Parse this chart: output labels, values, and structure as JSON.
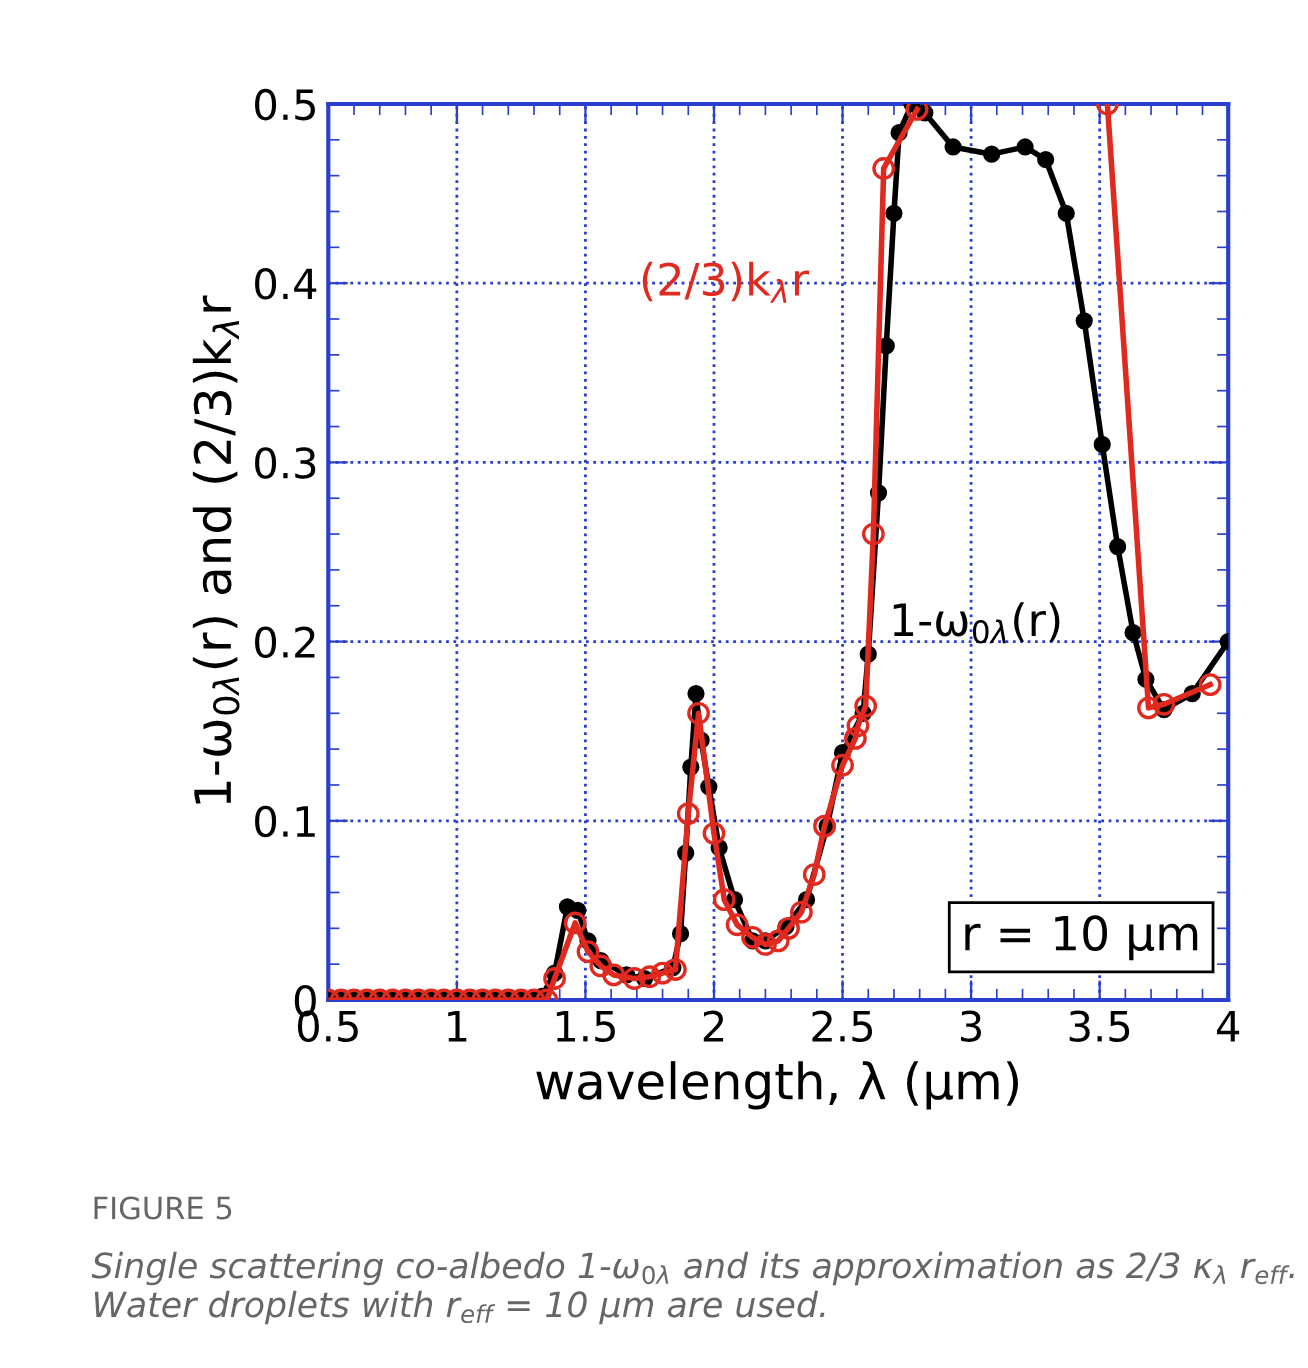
{
  "chart_data": {
    "type": "line",
    "xlabel": "wavelength, λ (µm)",
    "ylabel": "1-ω$_{0λ}$(r) and (2/3)k$_{λ}$r",
    "xlim": [
      0.5,
      4
    ],
    "ylim": [
      0,
      0.5
    ],
    "xticks": [
      0.5,
      1,
      1.5,
      2,
      2.5,
      3,
      3.5,
      4
    ],
    "yticks": [
      0,
      0.1,
      0.2,
      0.3,
      0.4,
      0.5
    ],
    "grid": true,
    "legend": false,
    "line_style": "solid",
    "series": [
      {
        "name": "(2/3)k$_{λ}$r",
        "color": "#e0291f",
        "marker": "circle",
        "x": [
          0.5,
          0.55,
          0.6,
          0.65,
          0.7,
          0.75,
          0.8,
          0.85,
          0.9,
          0.95,
          1.0,
          1.05,
          1.1,
          1.15,
          1.2,
          1.25,
          1.3,
          1.35,
          1.38,
          1.46,
          1.51,
          1.56,
          1.61,
          1.69,
          1.75,
          1.8,
          1.85,
          1.9,
          1.94,
          2.0,
          2.04,
          2.09,
          2.15,
          2.2,
          2.25,
          2.29,
          2.34,
          2.39,
          2.43,
          2.5,
          2.55,
          2.56,
          2.59,
          2.62,
          2.66,
          2.79,
          3.1,
          3.53,
          3.69,
          3.75,
          3.93
        ],
        "values": [
          0,
          0,
          0,
          0,
          0,
          0,
          0,
          0,
          0,
          0,
          0,
          0,
          0,
          0,
          0,
          0,
          0,
          0,
          0.012,
          0.043,
          0.027,
          0.019,
          0.014,
          0.012,
          0.013,
          0.015,
          0.017,
          0.104,
          0.16,
          0.093,
          0.056,
          0.042,
          0.035,
          0.031,
          0.033,
          0.04,
          0.049,
          0.07,
          0.097,
          0.131,
          0.146,
          0.153,
          0.164,
          0.26,
          0.464,
          0.497,
          null,
          0.5,
          0.163,
          0.165,
          0.176
        ]
      },
      {
        "name": "1-ω$_{0λ}$(r)",
        "color": "#000000",
        "marker": "circle",
        "x": [
          0.5,
          0.55,
          0.6,
          0.65,
          0.7,
          0.75,
          0.8,
          0.85,
          0.9,
          0.95,
          1.0,
          1.05,
          1.1,
          1.15,
          1.2,
          1.25,
          1.3,
          1.33,
          1.38,
          1.43,
          1.47,
          1.51,
          1.56,
          1.66,
          1.73,
          1.84,
          1.87,
          1.89,
          1.91,
          1.93,
          1.95,
          1.98,
          2.02,
          2.08,
          2.15,
          2.2,
          2.28,
          2.36,
          2.44,
          2.5,
          2.58,
          2.6,
          2.64,
          2.67,
          2.7,
          2.72,
          2.77,
          2.82,
          2.93,
          3.08,
          3.21,
          3.29,
          3.37,
          3.44,
          3.51,
          3.57,
          3.63,
          3.68,
          3.75,
          3.86,
          4.0
        ],
        "values": [
          0,
          0,
          0,
          0,
          0,
          0,
          0,
          0,
          0,
          0,
          0,
          0,
          0,
          0,
          0,
          0,
          0,
          0.002,
          0.015,
          0.052,
          0.05,
          0.033,
          0.022,
          0.014,
          0.012,
          0.018,
          0.037,
          0.082,
          0.13,
          0.171,
          0.145,
          0.119,
          0.085,
          0.056,
          0.033,
          0.033,
          0.041,
          0.056,
          0.097,
          0.138,
          0.16,
          0.193,
          0.283,
          0.365,
          0.439,
          0.484,
          0.5,
          0.495,
          0.476,
          0.472,
          0.476,
          0.469,
          0.439,
          0.379,
          0.31,
          0.253,
          0.205,
          0.179,
          0.162,
          0.171,
          0.2
        ]
      }
    ],
    "annotations": [
      "r = 10 µm",
      "FIGURE 5",
      "Single scattering co-albedo 1-ω$_{0λ}$ and its approximation as 2/3 κ$_{λ}$ r$_{eff}$. Water droplets with r$_{eff}$ = 10 µm are used."
    ]
  }
}
